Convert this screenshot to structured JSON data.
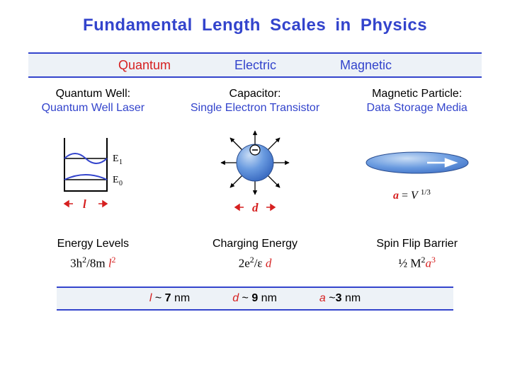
{
  "title": {
    "text": "Fundamental Length Scales   in   Physics",
    "color": "#3344cc",
    "fontsize": 24
  },
  "band_top": {
    "background": "#edf2f7",
    "border_color": "#3344cc",
    "items": [
      {
        "label": "Quantum",
        "color": "#d62020"
      },
      {
        "label": "Electric",
        "color": "#3344cc"
      },
      {
        "label": "Magnetic",
        "color": "#3344cc"
      }
    ]
  },
  "columns": [
    {
      "subtitle": "Quantum Well:",
      "application": "Quantum Well Laser",
      "app_color": "#3344cc",
      "diagram": {
        "type": "quantum-well",
        "levels": [
          "E1",
          "E0"
        ],
        "level_color": "#3344cc",
        "well_color": "#000000",
        "wave_color": "#3344cc"
      },
      "dimension": {
        "symbol": "l",
        "color": "#d62020"
      },
      "energy_name": "Energy Levels",
      "formula_html": "3h<sup>2</sup>/8m <span style='color:#d62020;font-style:italic'>l</span><sup style='color:#d62020'>2</sup>"
    },
    {
      "subtitle": "Capacitor:",
      "application": "Single Electron Transistor",
      "app_color": "#3344cc",
      "diagram": {
        "type": "charged-sphere",
        "fill_color": "#5b8ed6",
        "highlight_color": "#b9d1f0",
        "arrow_color": "#000000"
      },
      "dimension": {
        "symbol": "d",
        "color": "#d62020"
      },
      "energy_name": "Charging Energy",
      "formula_html": "2e<sup>2</sup>/ε <span style='color:#d62020;font-style:italic'>d</span>"
    },
    {
      "subtitle": "Magnetic Particle:",
      "application": "Data Storage Media",
      "app_color": "#3344cc",
      "diagram": {
        "type": "magnetic-disk",
        "fill_color": "#5b8ed6",
        "highlight_color": "#b9d1f0",
        "arrow_color": "#ffffff"
      },
      "dimension": {
        "symbol_html": "<span style='color:#d62020;font-style:italic'>a</span> = <span style='font-style:italic'>V</span><sup>1/3</sup>"
      },
      "energy_name": "Spin Flip Barrier",
      "formula_html": "½ M<sup>2</sup><span style='color:#d62020;font-style:italic'>a</span><sup style='color:#d62020'>3</sup>"
    }
  ],
  "band_bottom": {
    "background": "#edf2f7",
    "border_color": "#3344cc",
    "items": [
      {
        "html": "<span style='color:#d62020;font-style:italic'>l</span> ~ <b>7</b> nm"
      },
      {
        "html": "<span style='color:#d62020;font-style:italic'>d</span> ~ <b>9</b> nm"
      },
      {
        "html": "<span style='color:#d62020;font-style:italic'>a</span> ~<b>3</b> nm"
      }
    ]
  }
}
